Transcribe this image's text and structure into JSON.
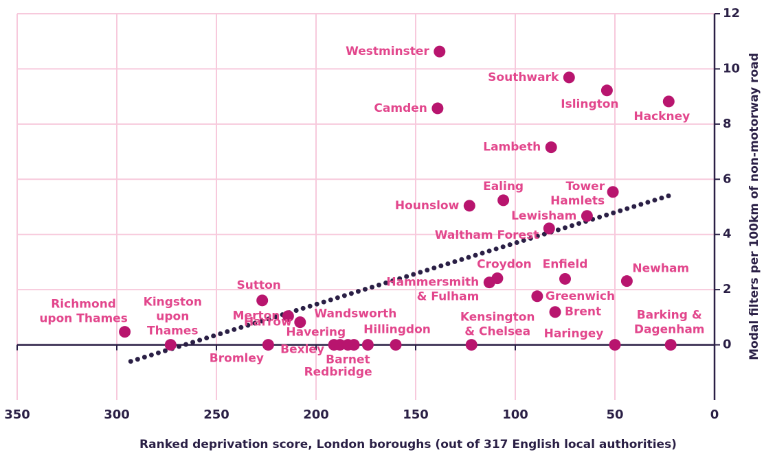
{
  "chart_data": {
    "type": "scatter",
    "xlabel": "Ranked deprivation score, London boroughs (out of 317 English local authorities)",
    "ylabel": "Modal filters per 100km of non-motorway road",
    "xlim": [
      350,
      0
    ],
    "xticks": [
      350,
      300,
      250,
      200,
      150,
      100,
      50,
      0
    ],
    "ylim": [
      -2,
      12
    ],
    "yticks": [
      0,
      2,
      4,
      6,
      8,
      10,
      12
    ],
    "grid": true,
    "point_color": "#b8156e",
    "label_color": "#e2468c",
    "points": [
      {
        "label": [
          "Westminster"
        ],
        "x": 138,
        "y": 10.63
      },
      {
        "label": [
          "Southwark"
        ],
        "x": 73,
        "y": 9.69
      },
      {
        "label": [
          "Islington"
        ],
        "x": 54,
        "y": 9.22
      },
      {
        "label": [
          "Hackney"
        ],
        "x": 23,
        "y": 8.82
      },
      {
        "label": [
          "Camden"
        ],
        "x": 139,
        "y": 8.57
      },
      {
        "label": [
          "Lambeth"
        ],
        "x": 82,
        "y": 7.16
      },
      {
        "label": [
          "Tower",
          "Hamlets"
        ],
        "x": 51,
        "y": 5.54
      },
      {
        "label": [
          "Ealing"
        ],
        "x": 106,
        "y": 5.24
      },
      {
        "label": [
          "Hounslow"
        ],
        "x": 123,
        "y": 5.04
      },
      {
        "label": [
          "Lewisham"
        ],
        "x": 64,
        "y": 4.67
      },
      {
        "label": [
          "Waltham Forest"
        ],
        "x": 83,
        "y": 4.22
      },
      {
        "label": [
          "Croydon"
        ],
        "x": 109,
        "y": 2.41
      },
      {
        "label": [
          "Hammersmith",
          "& Fulham"
        ],
        "x": 113,
        "y": 2.26
      },
      {
        "label": [
          "Enfield"
        ],
        "x": 75,
        "y": 2.39
      },
      {
        "label": [
          "Newham"
        ],
        "x": 44,
        "y": 2.31
      },
      {
        "label": [
          "Greenwich"
        ],
        "x": 89,
        "y": 1.76
      },
      {
        "label": [
          "Brent"
        ],
        "x": 80,
        "y": 1.19
      },
      {
        "label": [
          "Sutton"
        ],
        "x": 227,
        "y": 1.61
      },
      {
        "label": [
          "Merton"
        ],
        "x": 214,
        "y": 1.04
      },
      {
        "label": [
          "Harrow"
        ],
        "x": 208,
        "y": 0.82
      },
      {
        "label": [
          "Richmond",
          "upon Thames"
        ],
        "x": 296,
        "y": 0.47
      },
      {
        "label": [
          "Kingston",
          "upon",
          "Thames"
        ],
        "x": 273,
        "y": 0
      },
      {
        "label": [
          "Bromley"
        ],
        "x": 224,
        "y": 0
      },
      {
        "label": [
          "Bexley"
        ],
        "x": 191,
        "y": 0
      },
      {
        "label": [
          "Havering"
        ],
        "x": 188,
        "y": 0
      },
      {
        "label": [
          "Barnet"
        ],
        "x": 184,
        "y": 0
      },
      {
        "label": [
          "Redbridge"
        ],
        "x": 181,
        "y": 0
      },
      {
        "label": [
          "Wandsworth"
        ],
        "x": 174,
        "y": 0
      },
      {
        "label": [
          "Hillingdon"
        ],
        "x": 160,
        "y": 0
      },
      {
        "label": [
          "Kensington",
          "& Chelsea"
        ],
        "x": 122,
        "y": 0
      },
      {
        "label": [
          "Haringey"
        ],
        "x": 50,
        "y": 0
      },
      {
        "label": [
          "Barking &",
          "Dagenham"
        ],
        "x": 22,
        "y": 0
      }
    ],
    "trendline": {
      "x": [
        293,
        23
      ],
      "y": [
        -0.6,
        5.4
      ],
      "color": "#2a1f45"
    }
  }
}
